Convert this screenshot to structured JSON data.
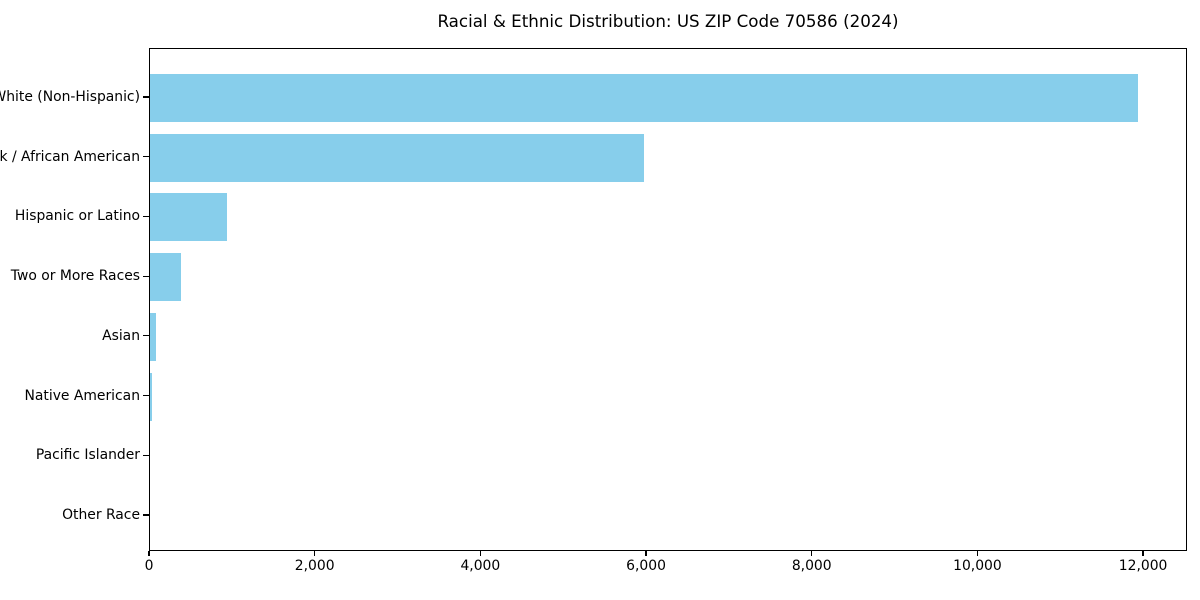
{
  "chart_data": {
    "type": "bar",
    "orientation": "horizontal",
    "title": "Racial & Ethnic Distribution: US ZIP Code 70586 (2024)",
    "xlabel": "",
    "ylabel": "",
    "categories": [
      "White (Non-Hispanic)",
      "Black / African American",
      "Hispanic or Latino",
      "Two or More Races",
      "Asian",
      "Native American",
      "Pacific Islander",
      "Other Race"
    ],
    "values": [
      11930,
      5965,
      930,
      370,
      70,
      28,
      0,
      0
    ],
    "xlim": [
      0,
      12530
    ],
    "xticks": [
      0,
      2000,
      4000,
      6000,
      8000,
      10000,
      12000
    ],
    "xtick_labels": [
      "0",
      "2,000",
      "4,000",
      "6,000",
      "8,000",
      "10,000",
      "12,000"
    ],
    "bar_color": "#87CEEB",
    "grid": false,
    "legend": null
  }
}
